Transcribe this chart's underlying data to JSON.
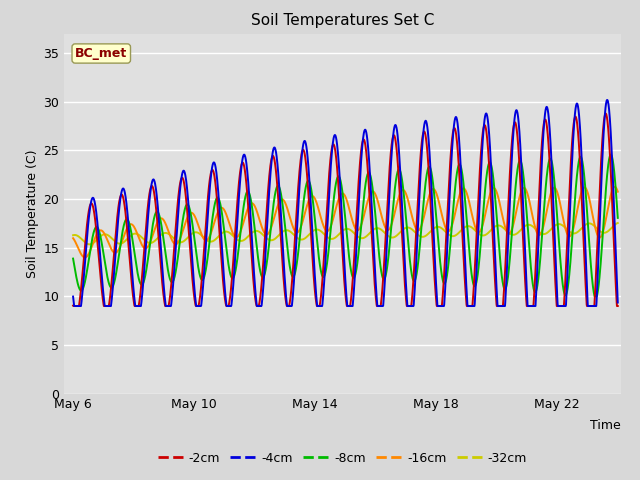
{
  "title": "Soil Temperatures Set C",
  "xlabel": "Time",
  "ylabel": "Soil Temperature (C)",
  "ylim": [
    0,
    37
  ],
  "yticks": [
    0,
    5,
    10,
    15,
    20,
    25,
    30,
    35
  ],
  "fig_bg_color": "#d8d8d8",
  "plot_bg_color": "#e0e0e0",
  "colors": {
    "-2cm": "#cc0000",
    "-4cm": "#0000dd",
    "-8cm": "#00bb00",
    "-16cm": "#ff8800",
    "-32cm": "#cccc00"
  },
  "line_width": 1.4,
  "start_day": 6.0,
  "end_day": 24.0,
  "xlim_left": 5.7,
  "xlim_right": 24.1,
  "xtick_days": [
    6,
    10,
    14,
    18,
    22
  ],
  "xtick_labels": [
    "May 6",
    "May 10",
    "May 14",
    "May 18",
    "May 22"
  ],
  "annotation_text": "BC_met",
  "n_points": 2000
}
